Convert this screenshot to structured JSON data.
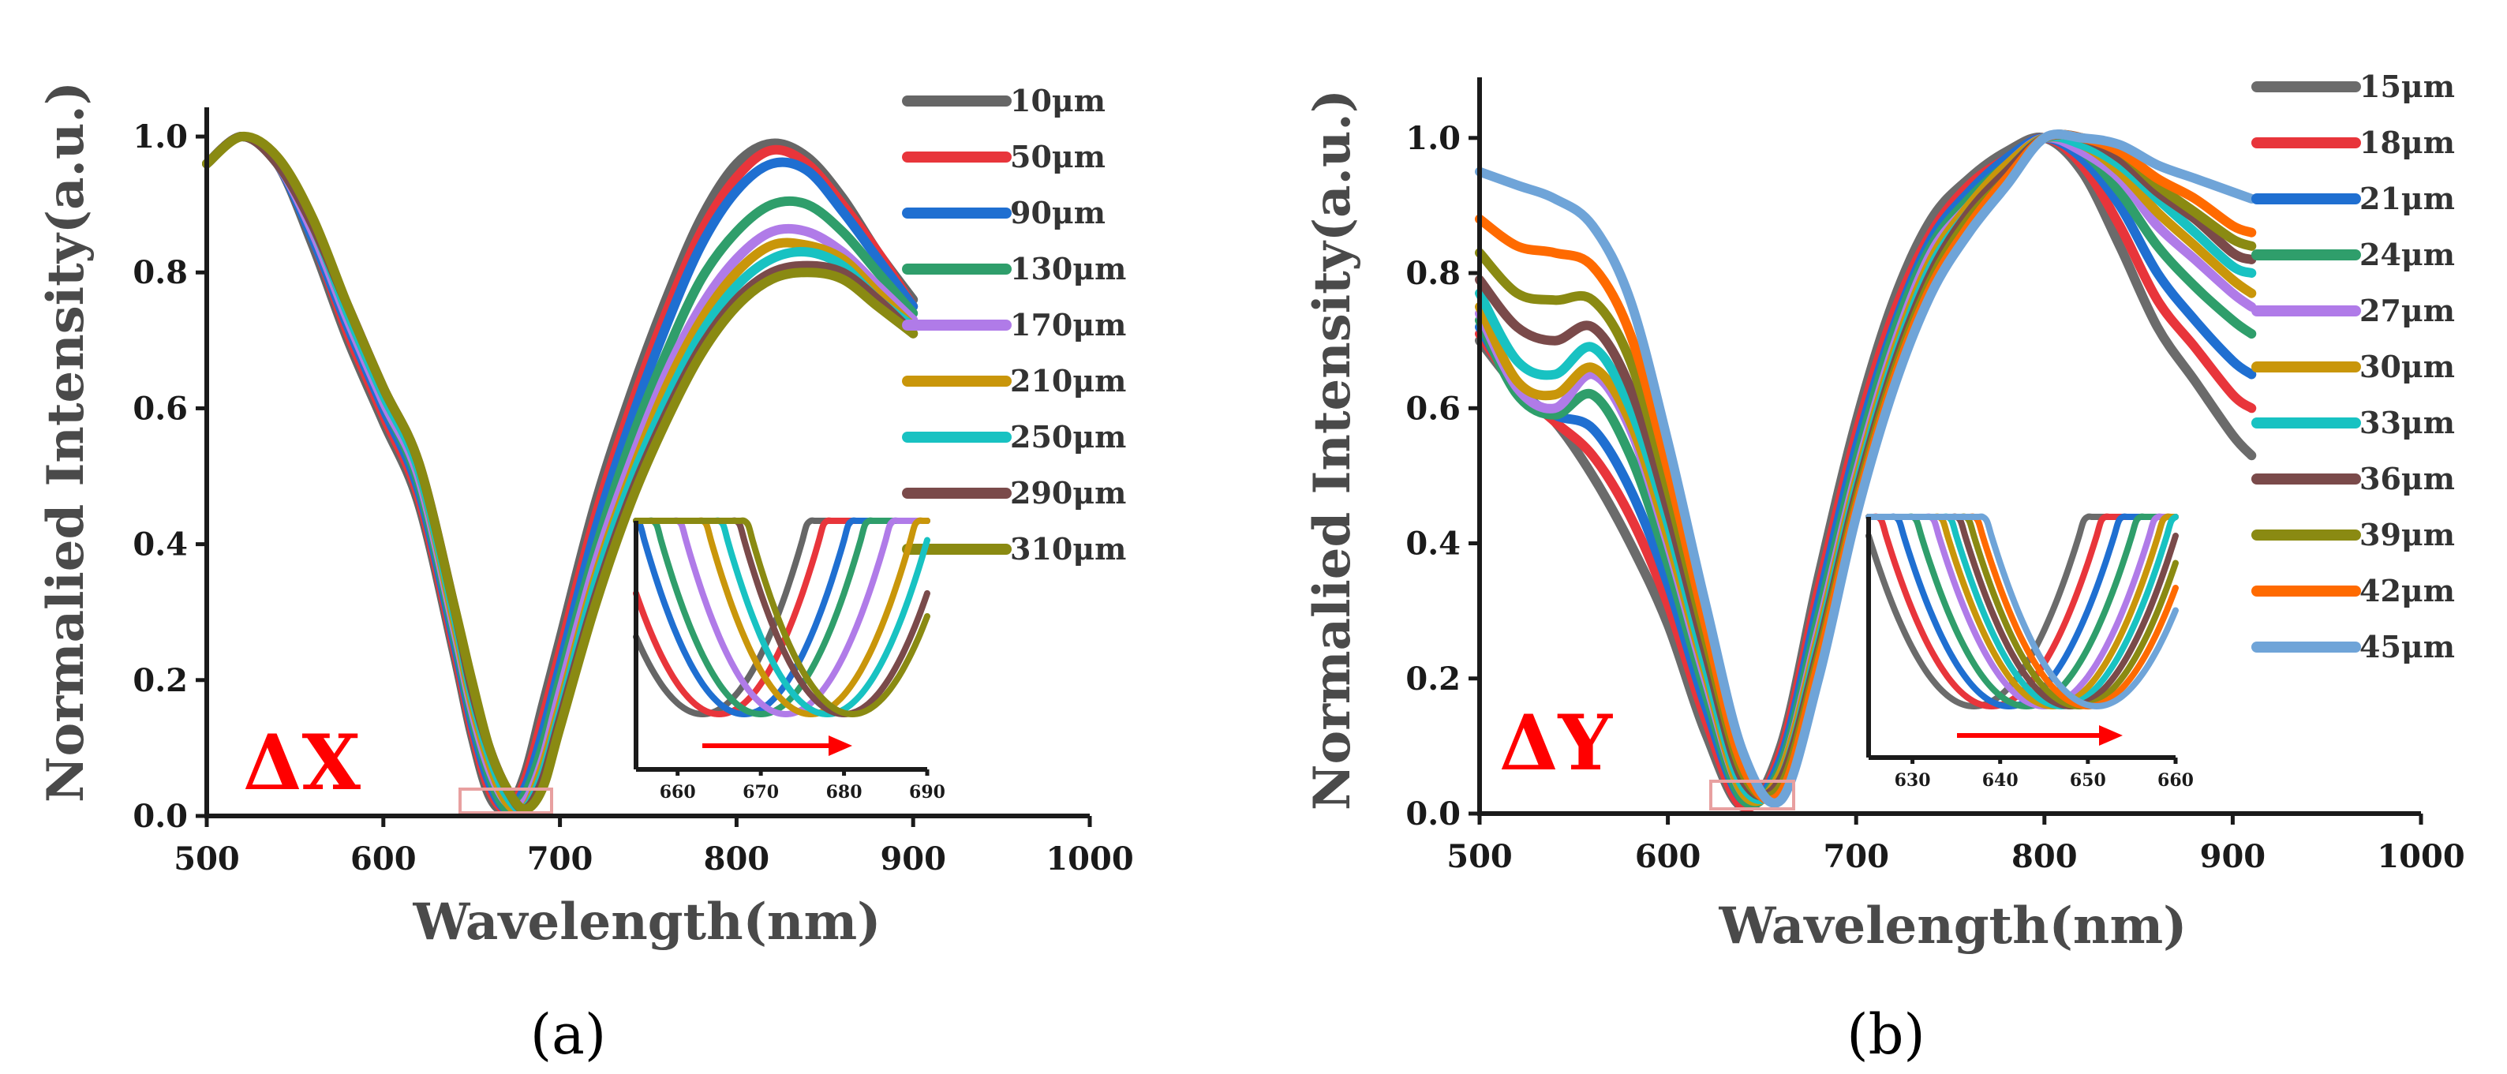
{
  "colors": {
    "palette_a": [
      "#666666",
      "#e8353b",
      "#1f6fd1",
      "#2f9e6b",
      "#b07be8",
      "#c9960a",
      "#18c2c2",
      "#7a4a4a",
      "#8a8a12"
    ],
    "palette_b": [
      "#6b6b6b",
      "#e8353b",
      "#1f6fd1",
      "#2f9e6b",
      "#b07be8",
      "#c9960a",
      "#18c2c2",
      "#7a4a4a",
      "#8a8a12",
      "#ff6a00",
      "#6fa4d8"
    ],
    "arrow": "#ff0000",
    "highlight": "#e8a0a0"
  },
  "chart_data": [
    {
      "type": "line",
      "panel_label": "(a)",
      "tag": "ΔX",
      "xlabel": "Wavelength(nm)",
      "ylabel": "Normalied Intensity(a.u.)",
      "xlim": [
        500,
        1000
      ],
      "ylim": [
        0.0,
        1.05
      ],
      "xticks": [
        "500",
        "600",
        "700",
        "800",
        "900",
        "1000"
      ],
      "yticks": [
        "0.0",
        "0.2",
        "0.4",
        "0.6",
        "0.8",
        "1.0"
      ],
      "x": [
        500,
        520,
        540,
        560,
        580,
        600,
        620,
        640,
        650,
        660,
        670,
        680,
        690,
        700,
        720,
        740,
        760,
        780,
        800,
        820,
        840,
        860,
        880,
        900
      ],
      "series": [
        {
          "name": "10μm",
          "dip": 663,
          "values": [
            0.96,
            1.0,
            0.96,
            0.84,
            0.7,
            0.58,
            0.46,
            0.24,
            0.12,
            0.03,
            0.01,
            0.06,
            0.16,
            0.26,
            0.46,
            0.62,
            0.76,
            0.88,
            0.96,
            0.99,
            0.97,
            0.91,
            0.83,
            0.76
          ]
        },
        {
          "name": "50μm",
          "dip": 665,
          "values": [
            0.96,
            1.0,
            0.96,
            0.85,
            0.71,
            0.59,
            0.47,
            0.25,
            0.13,
            0.04,
            0.01,
            0.05,
            0.14,
            0.24,
            0.44,
            0.6,
            0.74,
            0.86,
            0.94,
            0.98,
            0.96,
            0.9,
            0.83,
            0.75
          ]
        },
        {
          "name": "90μm",
          "dip": 668,
          "values": [
            0.96,
            1.0,
            0.96,
            0.85,
            0.72,
            0.6,
            0.48,
            0.26,
            0.14,
            0.05,
            0.01,
            0.04,
            0.12,
            0.22,
            0.42,
            0.58,
            0.72,
            0.84,
            0.92,
            0.96,
            0.95,
            0.89,
            0.82,
            0.75
          ]
        },
        {
          "name": "130μm",
          "dip": 670,
          "values": [
            0.96,
            1.0,
            0.96,
            0.86,
            0.73,
            0.61,
            0.49,
            0.27,
            0.15,
            0.06,
            0.01,
            0.03,
            0.1,
            0.2,
            0.39,
            0.55,
            0.68,
            0.79,
            0.86,
            0.9,
            0.9,
            0.86,
            0.8,
            0.74
          ]
        },
        {
          "name": "170μm",
          "dip": 673,
          "values": [
            0.96,
            1.0,
            0.96,
            0.86,
            0.73,
            0.61,
            0.5,
            0.28,
            0.16,
            0.07,
            0.02,
            0.02,
            0.08,
            0.18,
            0.37,
            0.52,
            0.65,
            0.75,
            0.82,
            0.86,
            0.86,
            0.83,
            0.78,
            0.73
          ]
        },
        {
          "name": "210μm",
          "dip": 676,
          "values": [
            0.96,
            1.0,
            0.96,
            0.87,
            0.74,
            0.62,
            0.51,
            0.29,
            0.17,
            0.08,
            0.02,
            0.01,
            0.07,
            0.16,
            0.35,
            0.5,
            0.63,
            0.73,
            0.8,
            0.84,
            0.84,
            0.82,
            0.77,
            0.72
          ]
        },
        {
          "name": "250μm",
          "dip": 678,
          "values": [
            0.96,
            1.0,
            0.96,
            0.87,
            0.74,
            0.62,
            0.51,
            0.3,
            0.18,
            0.09,
            0.03,
            0.01,
            0.06,
            0.15,
            0.34,
            0.49,
            0.61,
            0.71,
            0.78,
            0.82,
            0.83,
            0.81,
            0.76,
            0.72
          ]
        },
        {
          "name": "290μm",
          "dip": 680,
          "values": [
            0.96,
            1.0,
            0.96,
            0.87,
            0.75,
            0.63,
            0.52,
            0.31,
            0.19,
            0.1,
            0.04,
            0.01,
            0.05,
            0.14,
            0.32,
            0.47,
            0.59,
            0.69,
            0.76,
            0.8,
            0.81,
            0.8,
            0.76,
            0.71
          ]
        },
        {
          "name": "310μm",
          "dip": 681,
          "values": [
            0.96,
            1.0,
            0.97,
            0.88,
            0.75,
            0.63,
            0.52,
            0.31,
            0.2,
            0.1,
            0.04,
            0.01,
            0.04,
            0.13,
            0.31,
            0.46,
            0.58,
            0.68,
            0.75,
            0.79,
            0.8,
            0.79,
            0.75,
            0.71
          ]
        }
      ],
      "inset": {
        "xlim": [
          655,
          690
        ],
        "xticks": [
          "660",
          "670",
          "680",
          "690"
        ]
      }
    },
    {
      "type": "line",
      "panel_label": "(b)",
      "tag": "ΔY",
      "xlabel": "Wavelength(nm)",
      "ylabel": "Normalied Intensity(a.u.)",
      "xlim": [
        500,
        1000
      ],
      "ylim": [
        0.0,
        1.05
      ],
      "xticks": [
        "500",
        "600",
        "700",
        "800",
        "900",
        "1000"
      ],
      "yticks": [
        "0.0",
        "0.2",
        "0.4",
        "0.6",
        "0.8",
        "1.0"
      ],
      "x": [
        500,
        520,
        540,
        560,
        580,
        600,
        620,
        640,
        660,
        680,
        700,
        720,
        740,
        760,
        780,
        800,
        820,
        840,
        860,
        880,
        900,
        910
      ],
      "series": [
        {
          "name": "15μm",
          "dip": 637,
          "values": [
            0.7,
            0.63,
            0.58,
            0.5,
            0.4,
            0.28,
            0.12,
            0.01,
            0.1,
            0.35,
            0.58,
            0.76,
            0.88,
            0.94,
            0.98,
            1.0,
            0.95,
            0.84,
            0.72,
            0.64,
            0.56,
            0.53
          ]
        },
        {
          "name": "18μm",
          "dip": 639,
          "values": [
            0.71,
            0.63,
            0.58,
            0.53,
            0.44,
            0.31,
            0.14,
            0.01,
            0.09,
            0.33,
            0.56,
            0.74,
            0.86,
            0.93,
            0.97,
            1.0,
            0.96,
            0.87,
            0.76,
            0.69,
            0.62,
            0.6
          ]
        },
        {
          "name": "21μm",
          "dip": 641,
          "values": [
            0.72,
            0.63,
            0.59,
            0.57,
            0.48,
            0.34,
            0.16,
            0.02,
            0.08,
            0.31,
            0.54,
            0.72,
            0.85,
            0.92,
            0.97,
            1.0,
            0.97,
            0.9,
            0.8,
            0.73,
            0.67,
            0.65
          ]
        },
        {
          "name": "24μm",
          "dip": 643,
          "values": [
            0.73,
            0.62,
            0.59,
            0.62,
            0.53,
            0.37,
            0.18,
            0.02,
            0.07,
            0.29,
            0.52,
            0.71,
            0.84,
            0.91,
            0.96,
            1.0,
            0.98,
            0.92,
            0.84,
            0.78,
            0.73,
            0.71
          ]
        },
        {
          "name": "27μm",
          "dip": 645,
          "values": [
            0.74,
            0.63,
            0.6,
            0.65,
            0.57,
            0.4,
            0.2,
            0.03,
            0.06,
            0.27,
            0.5,
            0.69,
            0.83,
            0.9,
            0.96,
            1.0,
            0.98,
            0.94,
            0.87,
            0.82,
            0.77,
            0.75
          ]
        },
        {
          "name": "30μm",
          "dip": 646,
          "values": [
            0.75,
            0.64,
            0.62,
            0.66,
            0.58,
            0.41,
            0.21,
            0.03,
            0.06,
            0.26,
            0.49,
            0.68,
            0.82,
            0.9,
            0.96,
            1.0,
            0.99,
            0.95,
            0.89,
            0.84,
            0.79,
            0.77
          ]
        },
        {
          "name": "33μm",
          "dip": 647,
          "values": [
            0.77,
            0.67,
            0.65,
            0.69,
            0.6,
            0.43,
            0.22,
            0.04,
            0.05,
            0.25,
            0.48,
            0.67,
            0.81,
            0.89,
            0.95,
            1.0,
            0.99,
            0.96,
            0.91,
            0.86,
            0.81,
            0.8
          ]
        },
        {
          "name": "36μm",
          "dip": 648,
          "values": [
            0.79,
            0.72,
            0.7,
            0.72,
            0.63,
            0.45,
            0.24,
            0.05,
            0.05,
            0.24,
            0.47,
            0.66,
            0.8,
            0.89,
            0.95,
            1.0,
            1.0,
            0.97,
            0.92,
            0.88,
            0.83,
            0.82
          ]
        },
        {
          "name": "39μm",
          "dip": 649,
          "values": [
            0.83,
            0.77,
            0.76,
            0.76,
            0.67,
            0.48,
            0.26,
            0.06,
            0.04,
            0.23,
            0.46,
            0.65,
            0.79,
            0.88,
            0.94,
            1.0,
            1.0,
            0.98,
            0.93,
            0.89,
            0.85,
            0.84
          ]
        },
        {
          "name": "42μm",
          "dip": 650,
          "values": [
            0.88,
            0.84,
            0.83,
            0.81,
            0.71,
            0.51,
            0.28,
            0.07,
            0.03,
            0.22,
            0.45,
            0.64,
            0.78,
            0.87,
            0.94,
            1.0,
            1.0,
            0.98,
            0.94,
            0.91,
            0.87,
            0.86
          ]
        },
        {
          "name": "45μm",
          "dip": 651,
          "values": [
            0.95,
            0.93,
            0.91,
            0.87,
            0.76,
            0.55,
            0.31,
            0.09,
            0.02,
            0.2,
            0.44,
            0.63,
            0.77,
            0.86,
            0.93,
            1.0,
            1.0,
            0.99,
            0.96,
            0.94,
            0.92,
            0.91
          ]
        }
      ],
      "inset": {
        "xlim": [
          625,
          660
        ],
        "xticks": [
          "630",
          "640",
          "650",
          "660"
        ]
      }
    }
  ]
}
